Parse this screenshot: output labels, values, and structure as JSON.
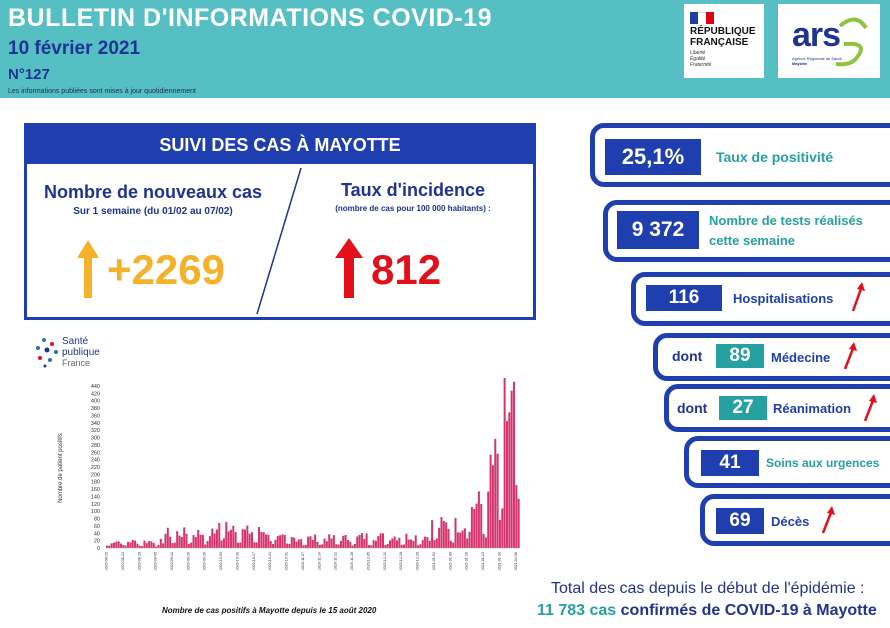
{
  "header": {
    "title": "BULLETIN D'INFORMATIONS COVID-19",
    "date": "10 février 2021",
    "number": "N°127",
    "note": "Les informations publiées sont mises à jour quotidiennement",
    "rf_logo": {
      "line1": "RÉPUBLIQUE",
      "line2": "FRANÇAISE",
      "motto1": "Liberté",
      "motto2": "Égalité",
      "motto3": "Fraternité"
    },
    "ars_logo": {
      "brand": "ars",
      "tagline": "Agence Régionale de Santé",
      "region": "Mayotte"
    }
  },
  "suivi": {
    "heading": "SUIVI DES CAS À MAYOTTE",
    "new_cases": {
      "title": "Nombre de nouveaux cas",
      "subtitle": "Sur 1 semaine (du 01/02 au 07/02)",
      "value": "+2269",
      "trend": "up"
    },
    "incidence": {
      "title": "Taux d'incidence",
      "subtitle": "(nombre de cas pour 100 000 habitants) :",
      "value": "812",
      "trend": "up"
    }
  },
  "indicators": {
    "positivity": {
      "value": "25,1%",
      "label": "Taux de positivité"
    },
    "tests": {
      "value": "9 372",
      "label_line1": "Nombre de tests réalisés",
      "label_line2": "cette semaine"
    },
    "hospital": {
      "value": "116",
      "label": "Hospitalisations",
      "trend": "up"
    },
    "medecine": {
      "prefix": "dont",
      "value": "89",
      "label": "Médecine",
      "trend": "up"
    },
    "reanimation": {
      "prefix": "dont",
      "value": "27",
      "label": "Réanimation",
      "trend": "up"
    },
    "urgences": {
      "value": "41",
      "label": "Soins aux urgences"
    },
    "deces": {
      "value": "69",
      "label": "Décès",
      "trend": "up"
    }
  },
  "spf_logo": {
    "line1": "Santé",
    "line2": "publique",
    "line3": "France"
  },
  "chart_caption": "Nombre de cas positifs à Mayotte depuis le 15 août 2020",
  "totals": {
    "line1": "Total des cas depuis le début de l'épidémie :",
    "count": "11 783 cas",
    "rest": "confirmés de COVID-19 à Mayotte"
  },
  "colors": {
    "teal": "#55bfc4",
    "navy": "#1f3fb0",
    "orange": "#f5b12a",
    "red": "#e3101b",
    "bar": "#d6336c"
  },
  "chart_data": {
    "type": "bar",
    "title": "",
    "xlabel": "",
    "ylabel": "Nombre de patient positifs",
    "ylim": [
      0,
      440
    ],
    "yticks": [
      0,
      20,
      40,
      60,
      80,
      100,
      120,
      140,
      160,
      180,
      200,
      220,
      240,
      260,
      280,
      300,
      320,
      340,
      360,
      380,
      400,
      420,
      440
    ],
    "xtick_labels": [
      "2020-08-15",
      "2020-08-22",
      "2020-08-29",
      "2020-09-05",
      "2020-09-12",
      "2020-09-19",
      "2020-09-26",
      "2020-10-03",
      "2020-10-10",
      "2020-10-17",
      "2020-10-24",
      "2020-10-31",
      "2020-11-07",
      "2020-11-14",
      "2020-11-21",
      "2020-11-28",
      "2020-12-05",
      "2020-12-12",
      "2020-12-19",
      "2020-12-26",
      "2021-01-02",
      "2021-01-09",
      "2021-01-16",
      "2021-01-23",
      "2021-01-30",
      "2021-02-06"
    ],
    "segments": [
      {
        "from": "2020-08-15",
        "to": "2020-09-08",
        "level": 20
      },
      {
        "from": "2020-09-09",
        "to": "2020-09-30",
        "level": 45
      },
      {
        "from": "2020-10-01",
        "to": "2020-10-10",
        "level": 70
      },
      {
        "from": "2020-10-11",
        "to": "2020-10-25",
        "level": 50
      },
      {
        "from": "2020-10-26",
        "to": "2020-11-30",
        "level": 30
      },
      {
        "from": "2020-12-01",
        "to": "2020-12-31",
        "level": 35
      },
      {
        "from": "2021-01-01",
        "to": "2021-01-15",
        "level": 70
      },
      {
        "from": "2021-01-16",
        "to": "2021-01-25",
        "level": 130
      },
      {
        "from": "2021-01-26",
        "to": "2021-01-31",
        "level": 250
      },
      {
        "from": "2021-02-01",
        "to": "2021-02-07",
        "level": 410
      }
    ]
  }
}
